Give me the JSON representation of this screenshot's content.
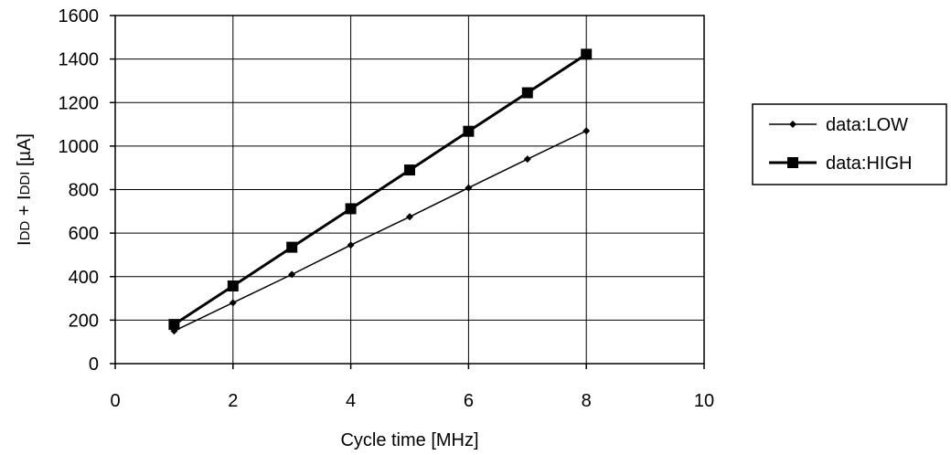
{
  "chart_data": {
    "type": "line",
    "title": "",
    "xlabel": "Cycle time [MHz]",
    "ylabel": "IDD + IDDI [µA]",
    "ylabel_parts": [
      "I",
      "DD",
      " + I",
      "DDI",
      " [µA]"
    ],
    "xlim": [
      0,
      10
    ],
    "ylim": [
      0,
      1600
    ],
    "xticks": [
      0,
      2,
      4,
      6,
      8,
      10
    ],
    "yticks": [
      0,
      200,
      400,
      600,
      800,
      1000,
      1200,
      1400,
      1600
    ],
    "grid": true,
    "legend_position": "right",
    "x": [
      1,
      2,
      3,
      4,
      5,
      6,
      7,
      8
    ],
    "series": [
      {
        "name": "data:LOW",
        "marker": "diamond",
        "color": "#000000",
        "values": [
          150,
          280,
          410,
          545,
          675,
          808,
          940,
          1070
        ]
      },
      {
        "name": "data:HIGH",
        "marker": "square",
        "color": "#000000",
        "values": [
          180,
          357,
          535,
          712,
          890,
          1068,
          1245,
          1422
        ]
      }
    ]
  }
}
